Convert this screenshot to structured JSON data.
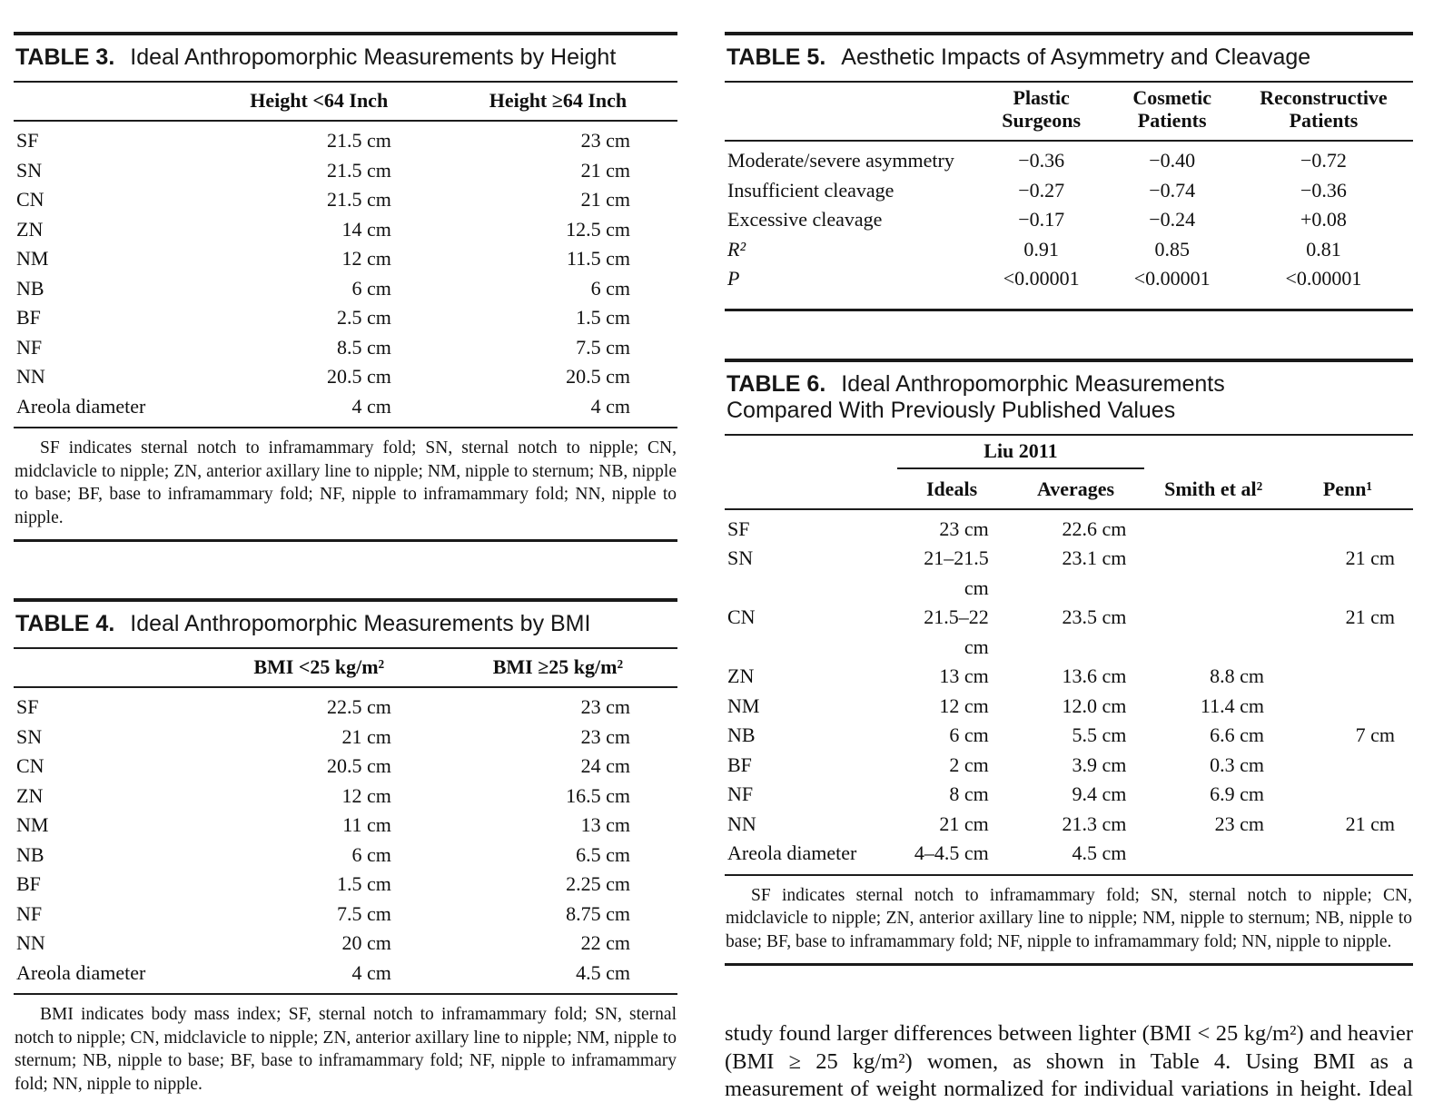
{
  "colors": {
    "background": "#ffffff",
    "text": "#101010",
    "rule": "#1a1a1a"
  },
  "tables": {
    "table3": {
      "label": "TABLE 3.",
      "title": "Ideal Anthropomorphic Measurements by Height",
      "columns": [
        "",
        "Height <64 Inch",
        "Height ≥64 Inch"
      ],
      "rows": [
        [
          "SF",
          "21.5 cm",
          "23 cm"
        ],
        [
          "SN",
          "21.5 cm",
          "21 cm"
        ],
        [
          "CN",
          "21.5 cm",
          "21 cm"
        ],
        [
          "ZN",
          "14 cm",
          "12.5 cm"
        ],
        [
          "NM",
          "12 cm",
          "11.5 cm"
        ],
        [
          "NB",
          "6 cm",
          "6 cm"
        ],
        [
          "BF",
          "2.5 cm",
          "1.5 cm"
        ],
        [
          "NF",
          "8.5 cm",
          "7.5 cm"
        ],
        [
          "NN",
          "20.5 cm",
          "20.5 cm"
        ],
        [
          "Areola diameter",
          "4 cm",
          "4 cm"
        ]
      ],
      "footnote": "SF indicates sternal notch to inframammary fold; SN, sternal notch to nipple; CN, midclavicle to nipple; ZN, anterior axillary line to nipple; NM, nipple to sternum; NB, nipple to base; BF, base to inframammary fold; NF, nipple to inframammary fold; NN, nipple to nipple."
    },
    "table4": {
      "label": "TABLE 4.",
      "title": "Ideal Anthropomorphic Measurements by BMI",
      "columns": [
        "",
        "BMI <25 kg/m²",
        "BMI ≥25 kg/m²"
      ],
      "rows": [
        [
          "SF",
          "22.5 cm",
          "23 cm"
        ],
        [
          "SN",
          "21 cm",
          "23 cm"
        ],
        [
          "CN",
          "20.5 cm",
          "24 cm"
        ],
        [
          "ZN",
          "12 cm",
          "16.5 cm"
        ],
        [
          "NM",
          "11 cm",
          "13 cm"
        ],
        [
          "NB",
          "6 cm",
          "6.5 cm"
        ],
        [
          "BF",
          "1.5 cm",
          "2.25 cm"
        ],
        [
          "NF",
          "7.5 cm",
          "8.75 cm"
        ],
        [
          "NN",
          "20 cm",
          "22 cm"
        ],
        [
          "Areola diameter",
          "4 cm",
          "4.5 cm"
        ]
      ],
      "footnote": "BMI indicates body mass index; SF, sternal notch to inframammary fold; SN, sternal notch to nipple; CN, midclavicle to nipple; ZN, anterior axillary line to nipple; NM, nipple to sternum; NB, nipple to base; BF, base to inframammary fold; NF, nipple to inframammary fold; NN, nipple to nipple."
    },
    "table5": {
      "label": "TABLE 5.",
      "title": "Aesthetic Impacts of Asymmetry and Cleavage",
      "columns": [
        "",
        "Plastic Surgeons",
        "Cosmetic Patients",
        "Reconstructive Patients"
      ],
      "rows": [
        [
          "Moderate/severe asymmetry",
          "−0.36",
          "−0.40",
          "−0.72"
        ],
        [
          "Insufficient cleavage",
          "−0.27",
          "−0.74",
          "−0.36"
        ],
        [
          "Excessive cleavage",
          "−0.17",
          "−0.24",
          "+0.08"
        ],
        {
          "cells": [
            "R²",
            "0.91",
            "0.85",
            "0.81"
          ],
          "italic_label": true
        },
        {
          "cells": [
            "P",
            "<0.00001",
            "<0.00001",
            "<0.00001"
          ],
          "italic_label": true
        }
      ]
    },
    "table6": {
      "label": "TABLE 6.",
      "title_line1": "Ideal Anthropomorphic Measurements",
      "title_line2": "Compared With Previously Published Values",
      "spanner": "Liu 2011",
      "columns": [
        "",
        "Ideals",
        "Averages",
        "Smith et al²",
        "Penn¹"
      ],
      "rows": [
        [
          "SF",
          "23 cm",
          "22.6 cm",
          "",
          ""
        ],
        [
          "SN",
          "21–21.5 cm",
          "23.1 cm",
          "",
          "21 cm"
        ],
        [
          "CN",
          "21.5–22 cm",
          "23.5 cm",
          "",
          "21 cm"
        ],
        [
          "ZN",
          "13 cm",
          "13.6 cm",
          "8.8 cm",
          ""
        ],
        [
          "NM",
          "12 cm",
          "12.0 cm",
          "11.4 cm",
          ""
        ],
        [
          "NB",
          "6 cm",
          "5.5 cm",
          "6.6 cm",
          "7 cm"
        ],
        [
          "BF",
          "2 cm",
          "3.9 cm",
          "0.3 cm",
          ""
        ],
        [
          "NF",
          "8 cm",
          "9.4 cm",
          "6.9 cm",
          ""
        ],
        [
          "NN",
          "21 cm",
          "21.3 cm",
          "23 cm",
          "21 cm"
        ],
        [
          "Areola diameter",
          "4–4.5 cm",
          "4.5 cm",
          "",
          ""
        ]
      ],
      "footnote": "SF indicates sternal notch to inframammary fold; SN, sternal notch to nipple; CN, midclavicle to nipple; ZN, anterior axillary line to nipple; NM, nipple to sternum; NB, nipple to base; BF, base to inframammary fold; NF, nipple to inframammary fold; NN, nipple to nipple."
    }
  },
  "body_paragraph": "study found larger differences between lighter (BMI < 25 kg/m²) and heavier (BMI ≥ 25 kg/m²) women, as shown in Table 4. Using BMI as a measurement of weight normalized for individual variations in height. Ideal measurements in the heavier group"
}
